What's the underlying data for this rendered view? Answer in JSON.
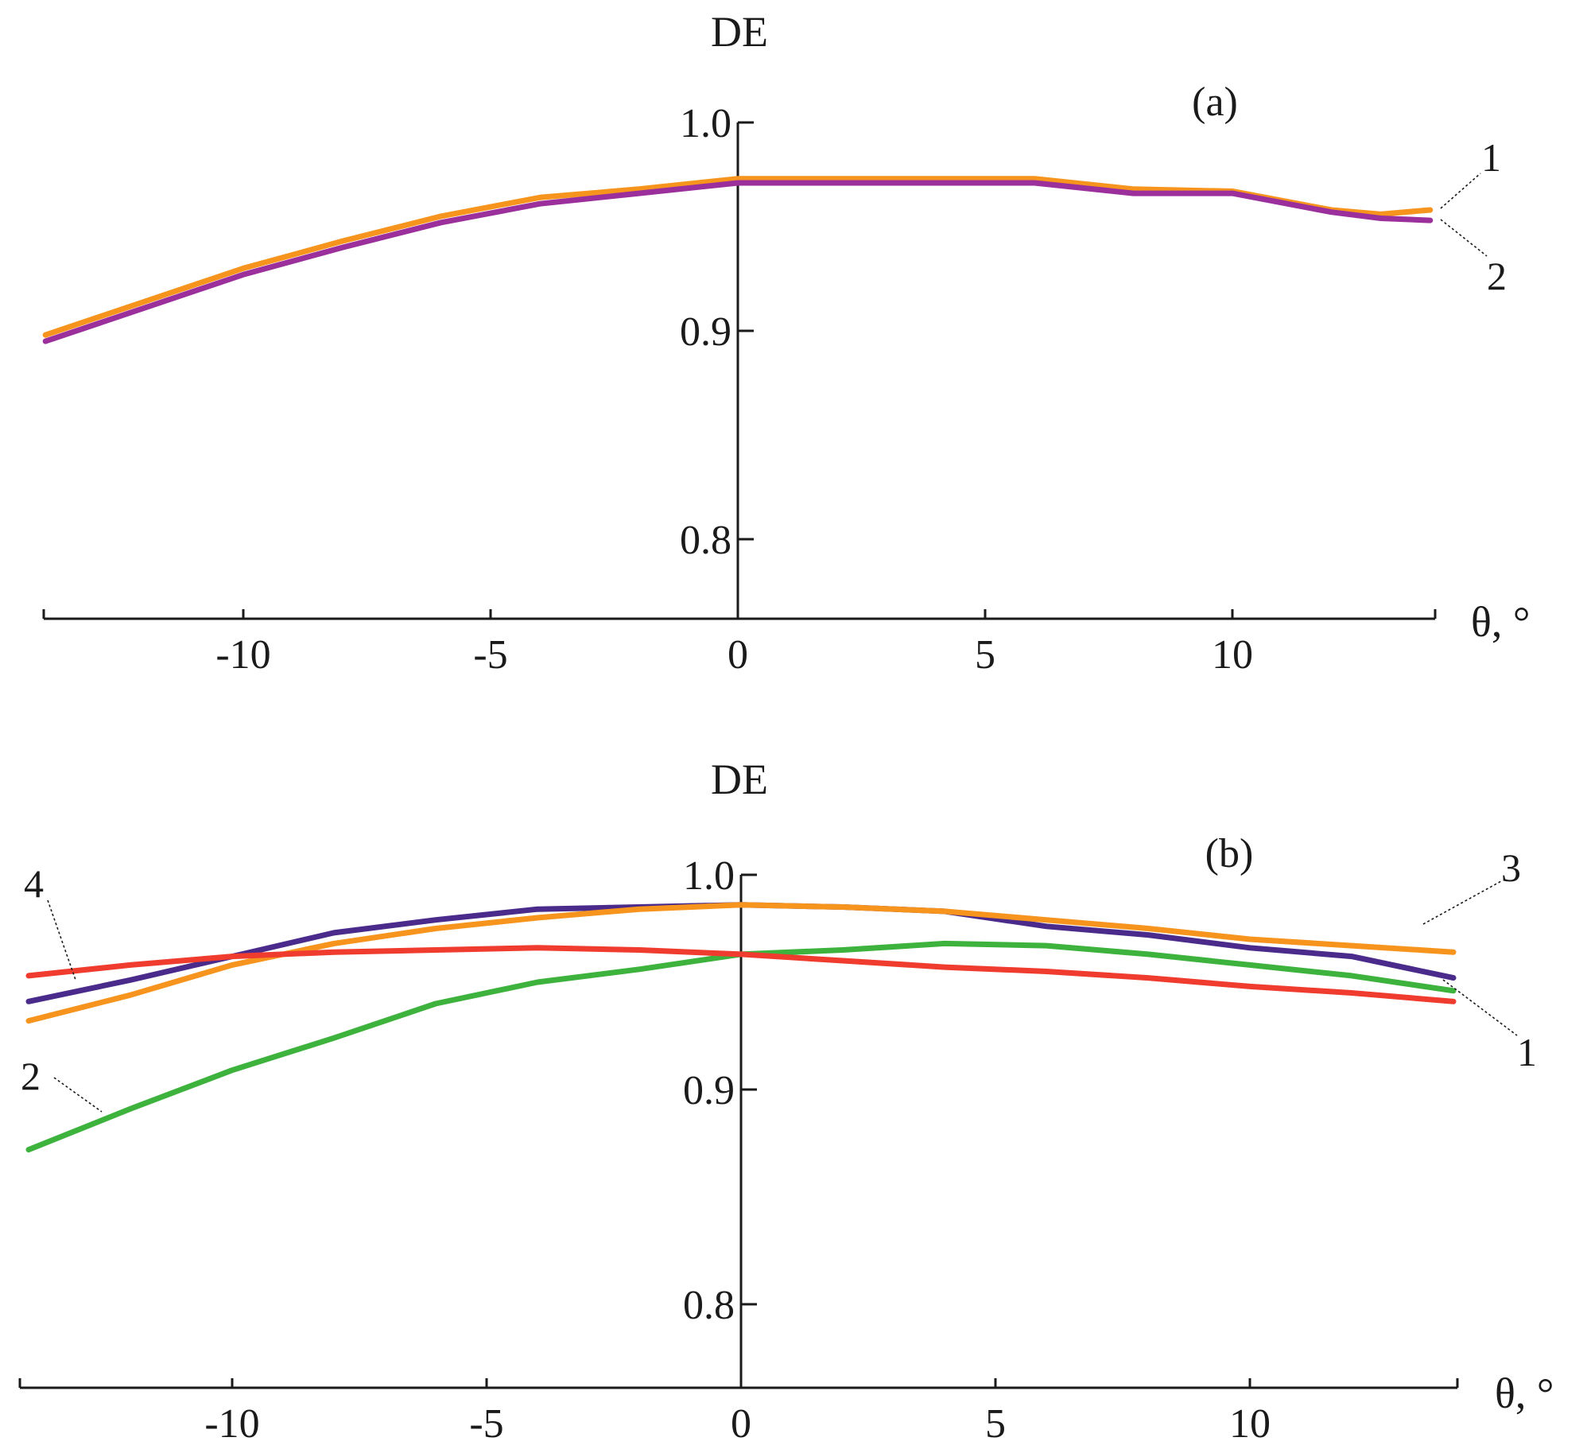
{
  "chart_data": [
    {
      "type": "line",
      "panel_label": "(a)",
      "ylabel": "DE",
      "xlabel": "θ, °",
      "xlim": [
        -14,
        14
      ],
      "ylim": [
        0.765,
        1.0
      ],
      "xticks": [
        -10,
        -5,
        0,
        5,
        10
      ],
      "xtick_labels": [
        "-10",
        "-5",
        "0",
        "5",
        "10"
      ],
      "yticks": [
        0.8,
        0.9,
        1.0
      ],
      "ytick_labels": [
        "0.8",
        "0.9",
        "1.0"
      ],
      "grid": false,
      "series": [
        {
          "name": "1",
          "color": "#f7941d",
          "x": [
            -14,
            -12,
            -10,
            -8,
            -6,
            -4,
            -2,
            0,
            2,
            4,
            6,
            8,
            10,
            12,
            13,
            14
          ],
          "y": [
            0.898,
            0.914,
            0.93,
            0.943,
            0.955,
            0.964,
            0.968,
            0.973,
            0.973,
            0.973,
            0.973,
            0.968,
            0.967,
            0.958,
            0.956,
            0.958
          ]
        },
        {
          "name": "2",
          "color": "#9b2f9b",
          "x": [
            -14,
            -12,
            -10,
            -8,
            -6,
            -4,
            -2,
            0,
            2,
            4,
            6,
            8,
            10,
            12,
            13,
            14
          ],
          "y": [
            0.895,
            0.911,
            0.927,
            0.94,
            0.952,
            0.961,
            0.966,
            0.971,
            0.971,
            0.971,
            0.971,
            0.966,
            0.966,
            0.957,
            0.954,
            0.953
          ]
        }
      ]
    },
    {
      "type": "line",
      "panel_label": "(b)",
      "ylabel": "DE",
      "xlabel": "θ, °",
      "xlim": [
        -14.2,
        14.2
      ],
      "ylim": [
        0.765,
        1.0
      ],
      "xticks": [
        -10,
        -5,
        0,
        5,
        10
      ],
      "xtick_labels": [
        "-10",
        "-5",
        "0",
        "5",
        "10"
      ],
      "yticks": [
        0.8,
        0.9,
        1.0
      ],
      "ytick_labels": [
        "0.8",
        "0.9",
        "1.0"
      ],
      "grid": false,
      "series": [
        {
          "name": "1",
          "color": "#4a2a8a",
          "x": [
            -14,
            -12,
            -10,
            -8,
            -6,
            -4,
            -2,
            0,
            2,
            4,
            6,
            8,
            10,
            12,
            14
          ],
          "y": [
            0.941,
            0.951,
            0.962,
            0.973,
            0.979,
            0.984,
            0.985,
            0.986,
            0.985,
            0.983,
            0.976,
            0.972,
            0.966,
            0.962,
            0.952
          ]
        },
        {
          "name": "2",
          "color": "#3db33d",
          "x": [
            -14,
            -12,
            -10,
            -8,
            -6,
            -4,
            -2,
            0,
            2,
            4,
            6,
            8,
            10,
            12,
            14
          ],
          "y": [
            0.872,
            0.891,
            0.909,
            0.924,
            0.94,
            0.95,
            0.956,
            0.963,
            0.965,
            0.968,
            0.967,
            0.963,
            0.958,
            0.953,
            0.946
          ]
        },
        {
          "name": "3",
          "color": "#f7941d",
          "x": [
            -14,
            -12,
            -10,
            -8,
            -6,
            -4,
            -2,
            0,
            2,
            4,
            6,
            8,
            10,
            12,
            14
          ],
          "y": [
            0.932,
            0.944,
            0.958,
            0.968,
            0.975,
            0.98,
            0.984,
            0.986,
            0.985,
            0.983,
            0.979,
            0.975,
            0.97,
            0.967,
            0.964
          ]
        },
        {
          "name": "4",
          "color": "#f03c2e",
          "x": [
            -14,
            -12,
            -10,
            -8,
            -6,
            -4,
            -2,
            0,
            2,
            4,
            6,
            8,
            10,
            12,
            14
          ],
          "y": [
            0.953,
            0.958,
            0.962,
            0.964,
            0.965,
            0.966,
            0.965,
            0.963,
            0.96,
            0.957,
            0.955,
            0.952,
            0.948,
            0.945,
            0.941
          ]
        }
      ]
    }
  ]
}
